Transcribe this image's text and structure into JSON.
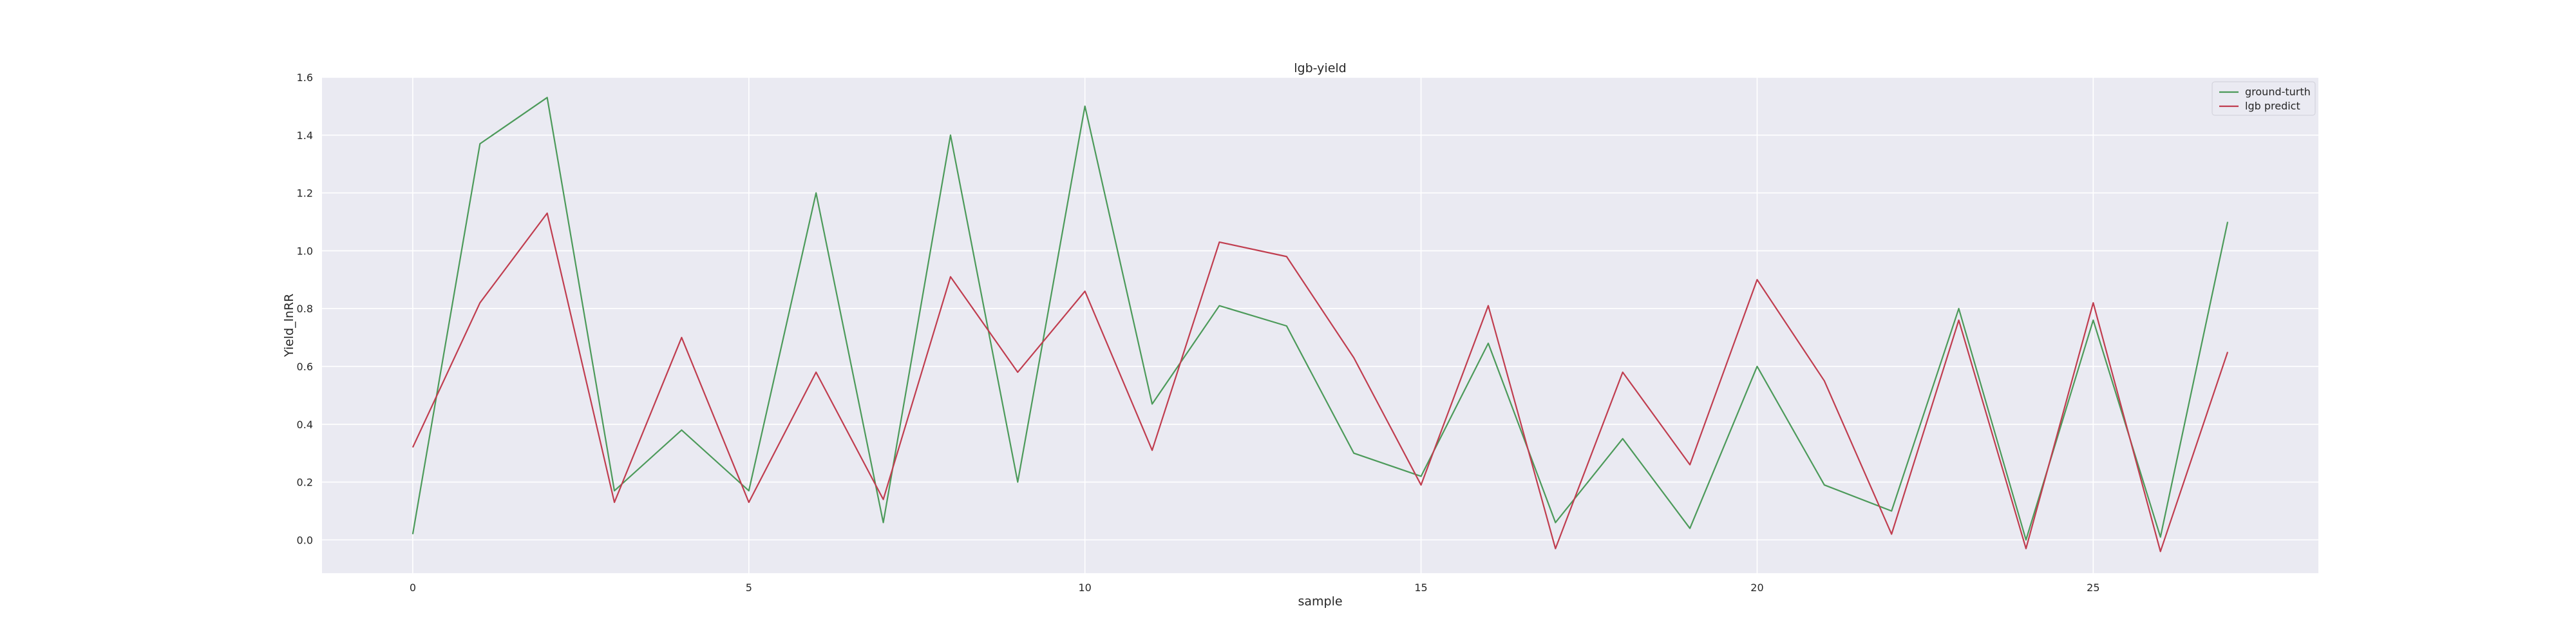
{
  "chart_data": {
    "type": "line",
    "title": "lgb-yield",
    "xlabel": "sample",
    "ylabel": "Yield_lnRR",
    "xlim": [
      -1.35,
      28.35
    ],
    "ylim": [
      -0.115,
      1.6
    ],
    "xticks": [
      0,
      5,
      10,
      15,
      20,
      25
    ],
    "yticks": [
      0.0,
      0.2,
      0.4,
      0.6,
      0.8,
      1.0,
      1.2,
      1.4,
      1.6
    ],
    "ytick_labels": [
      "0.0",
      "0.2",
      "0.4",
      "0.6",
      "0.8",
      "1.0",
      "1.2",
      "1.4",
      "1.6"
    ],
    "grid": true,
    "legend_position": "top-right",
    "x": [
      0,
      1,
      2,
      3,
      4,
      5,
      6,
      7,
      8,
      9,
      10,
      11,
      12,
      13,
      14,
      15,
      16,
      17,
      18,
      19,
      20,
      21,
      22,
      23,
      24,
      25,
      26,
      27
    ],
    "series": [
      {
        "name": "ground-turth",
        "color": "#4c9a5a",
        "values": [
          0.02,
          1.37,
          1.53,
          0.17,
          0.38,
          0.17,
          1.2,
          0.06,
          1.4,
          0.2,
          1.5,
          0.47,
          0.81,
          0.74,
          0.3,
          0.22,
          0.68,
          0.06,
          0.35,
          0.04,
          0.6,
          0.19,
          0.1,
          0.8,
          0.0,
          0.76,
          0.01,
          1.1
        ]
      },
      {
        "name": "lgb predict",
        "color": "#c03d4f",
        "values": [
          0.32,
          0.82,
          1.13,
          0.13,
          0.7,
          0.13,
          0.58,
          0.14,
          0.91,
          0.58,
          0.86,
          0.31,
          1.03,
          0.98,
          0.63,
          0.19,
          0.81,
          -0.03,
          0.58,
          0.26,
          0.9,
          0.55,
          0.02,
          0.76,
          -0.03,
          0.82,
          -0.04,
          0.65
        ]
      }
    ]
  }
}
